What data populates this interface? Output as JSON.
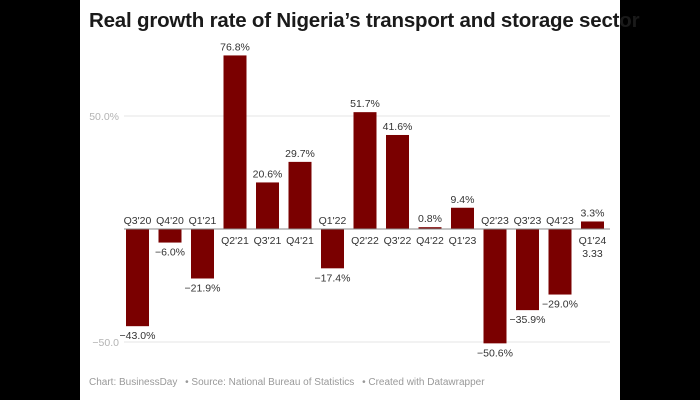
{
  "title": "Real growth rate of Nigeria’s transport and storage sector",
  "footer": {
    "chart_credit": "Chart: BusinessDay",
    "source": "• Source: National Bureau of Statistics",
    "created": "• Created with Datawrapper"
  },
  "colors": {
    "bar": "#7a0000",
    "background": "#ffffff",
    "frame": "#000000"
  },
  "chart_data": {
    "type": "bar",
    "title": "Real growth rate of Nigeria’s transport and storage sector",
    "xlabel": "",
    "ylabel": "",
    "ylim": [
      -55,
      80
    ],
    "grid": true,
    "y_ticks": [
      {
        "value": 50,
        "label": "50.0%"
      },
      {
        "value": -50,
        "label": "−50.0"
      }
    ],
    "categories": [
      "Q3'20",
      "Q4'20",
      "Q1'21",
      "Q2'21",
      "Q3'21",
      "Q4'21",
      "Q1'22",
      "Q2'22",
      "Q3'22",
      "Q4'22",
      "Q1'23",
      "Q2'23",
      "Q3'23",
      "Q4'23",
      "Q1'24"
    ],
    "values": [
      -43.0,
      -6.0,
      -21.9,
      76.8,
      20.6,
      29.7,
      -17.4,
      51.7,
      41.6,
      0.8,
      9.4,
      -50.6,
      -35.9,
      -29.0,
      3.33
    ],
    "value_labels": [
      "−43.0%",
      "−6.0%",
      "−21.9%",
      "76.8%",
      "20.6%",
      "29.7%",
      "−17.4%",
      "51.7%",
      "41.6%",
      "0.8%",
      "9.4%",
      "−50.6%",
      "−35.9%",
      "−29.0%",
      "3.3%"
    ],
    "annotations": [
      {
        "category": "Q1'24",
        "text": "3.33"
      }
    ]
  }
}
